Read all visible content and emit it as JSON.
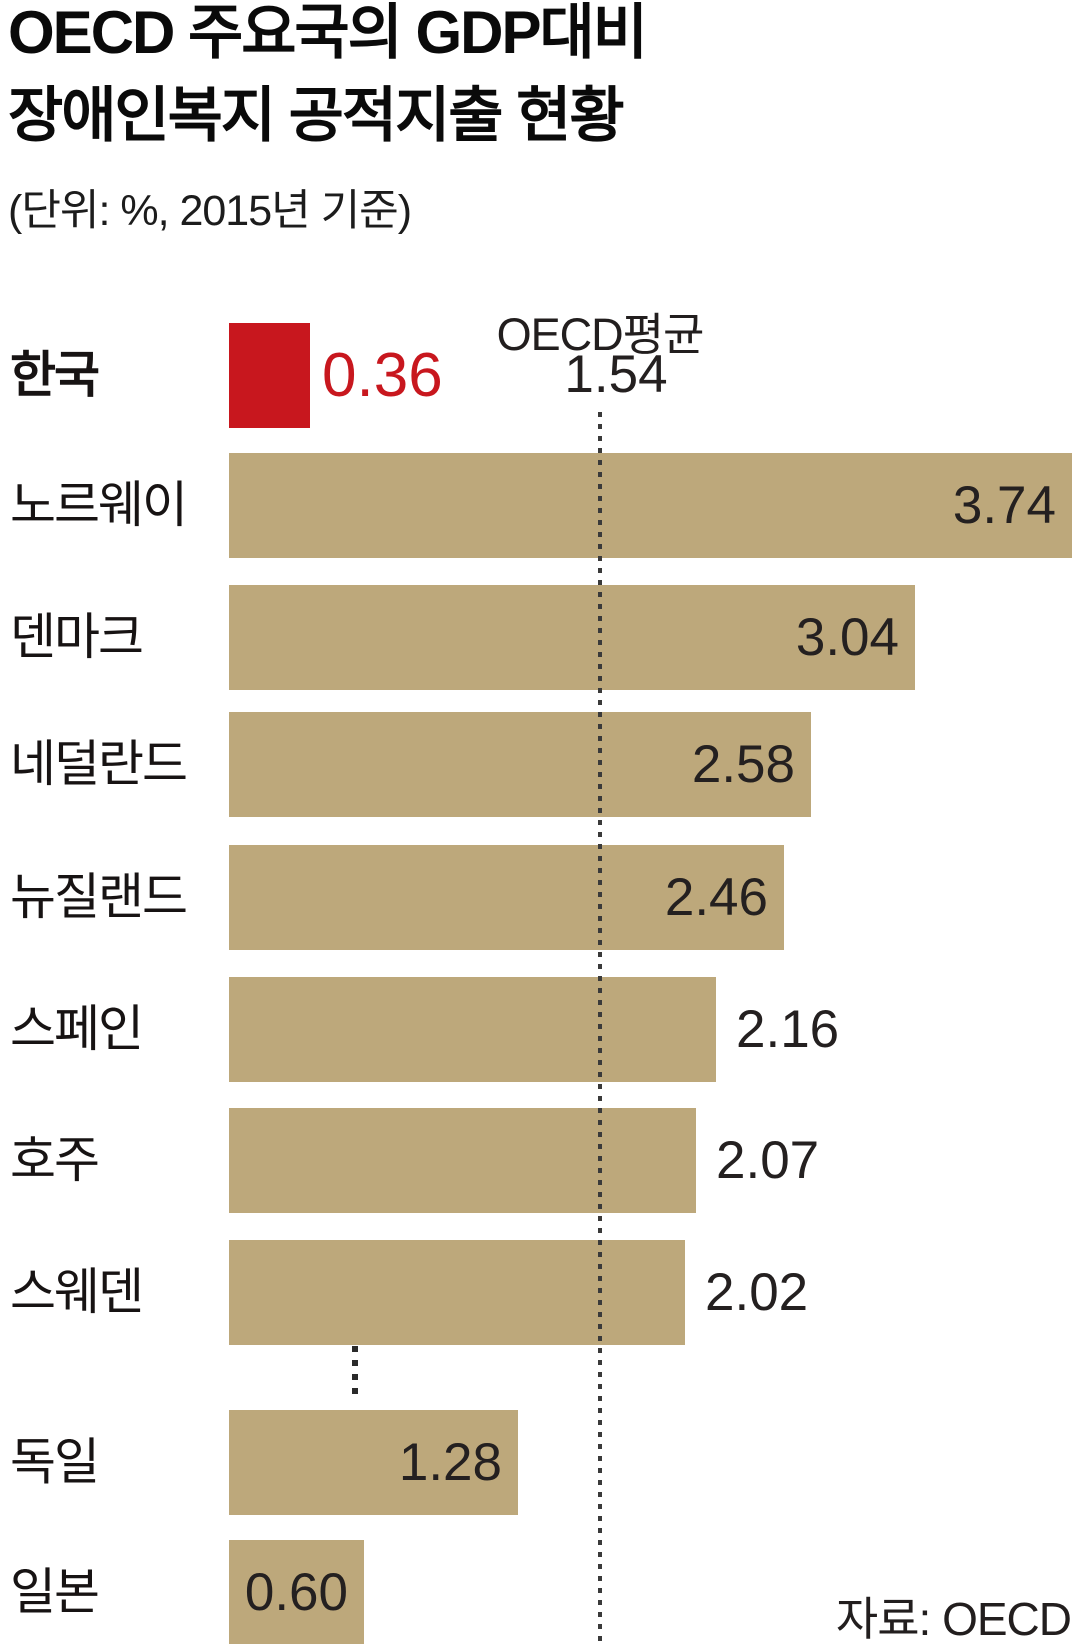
{
  "header": {
    "title_line1": "OECD 주요국의 GDP대비",
    "title_line2": "장애인복지 공적지출 현황",
    "subtitle": "(단위: %, 2015년 기준)"
  },
  "chart_data": {
    "type": "bar",
    "orientation": "horizontal",
    "title": "OECD 주요국의 GDP대비 장애인복지 공적지출 현황",
    "unit": "%",
    "xlim": [
      0,
      3.76
    ],
    "grid": false,
    "categories": [
      "한국",
      "노르웨이",
      "덴마크",
      "네덜란드",
      "뉴질랜드",
      "스페인",
      "호주",
      "스웨덴",
      "독일",
      "일본"
    ],
    "values": [
      0.36,
      3.74,
      3.04,
      2.58,
      2.46,
      2.16,
      2.07,
      2.02,
      1.28,
      0.6
    ],
    "rows": [
      {
        "label": "한국",
        "value": 0.36,
        "display": "0.36",
        "highlight": true,
        "value_inside": false
      },
      {
        "label": "노르웨이",
        "value": 3.74,
        "display": "3.74",
        "highlight": false,
        "value_inside": true
      },
      {
        "label": "덴마크",
        "value": 3.04,
        "display": "3.04",
        "highlight": false,
        "value_inside": true
      },
      {
        "label": "네덜란드",
        "value": 2.58,
        "display": "2.58",
        "highlight": false,
        "value_inside": true
      },
      {
        "label": "뉴질랜드",
        "value": 2.46,
        "display": "2.46",
        "highlight": false,
        "value_inside": true
      },
      {
        "label": "스페인",
        "value": 2.16,
        "display": "2.16",
        "highlight": false,
        "value_inside": false
      },
      {
        "label": "호주",
        "value": 2.07,
        "display": "2.07",
        "highlight": false,
        "value_inside": false
      },
      {
        "label": "스웨덴",
        "value": 2.02,
        "display": "2.02",
        "highlight": false,
        "value_inside": false
      },
      {
        "label": "독일",
        "value": 1.28,
        "display": "1.28",
        "highlight": false,
        "value_inside": true
      },
      {
        "label": "일본",
        "value": 0.6,
        "display": "0.60",
        "highlight": false,
        "value_inside": true
      }
    ],
    "truncation_after_label": "스웨덴",
    "reference_line": {
      "label": "OECD평균",
      "value": 1.54,
      "display": "1.54"
    },
    "source": "자료: OECD"
  },
  "colors": {
    "bar": "#bda87b",
    "highlight_bar": "#c8171e",
    "highlight_value": "#c8171e",
    "value_text": "#242020",
    "label_text": "#171313",
    "reference_line": "#3a3a3a",
    "ellipsis": "#2a2a2a",
    "background": "#ffffff"
  }
}
